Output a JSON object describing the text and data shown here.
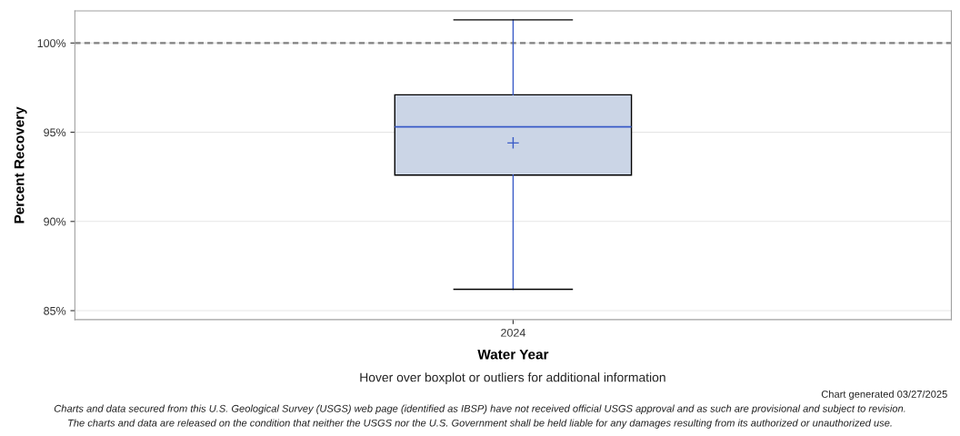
{
  "chart_data": {
    "type": "box",
    "xlabel": "Water Year",
    "ylabel": "Percent Recovery",
    "categories": [
      "2024"
    ],
    "boxes": [
      {
        "low": 86.2,
        "q1": 92.6,
        "median": 95.3,
        "q3": 97.1,
        "high": 101.3,
        "mean": 94.4
      }
    ],
    "color": "#cbd5e6",
    "ylim": [
      84.5,
      101.8
    ],
    "yticks": [
      {
        "value": 85,
        "label": "85%"
      },
      {
        "value": 90,
        "label": "90%"
      },
      {
        "value": 95,
        "label": "95%"
      },
      {
        "value": 100,
        "label": "100%"
      }
    ],
    "grid": "y",
    "legend": false,
    "ref_lines": [
      {
        "axis": "y",
        "value": 100,
        "color": "#808080",
        "line_style": "dashed"
      }
    ],
    "annotations": [
      "Hover over boxplot or outliers for additional information",
      "Chart generated 03/27/2025",
      "Charts and data secured from this U.S. Geological Survey (USGS) web page (identified as IBSP) have not received official USGS approval and as such are provisional and subject to revision.",
      "The charts and data are released on the condition that neither the USGS nor the U.S. Government shall be held liable for any damages resulting from its authorized or unauthorized use."
    ]
  }
}
